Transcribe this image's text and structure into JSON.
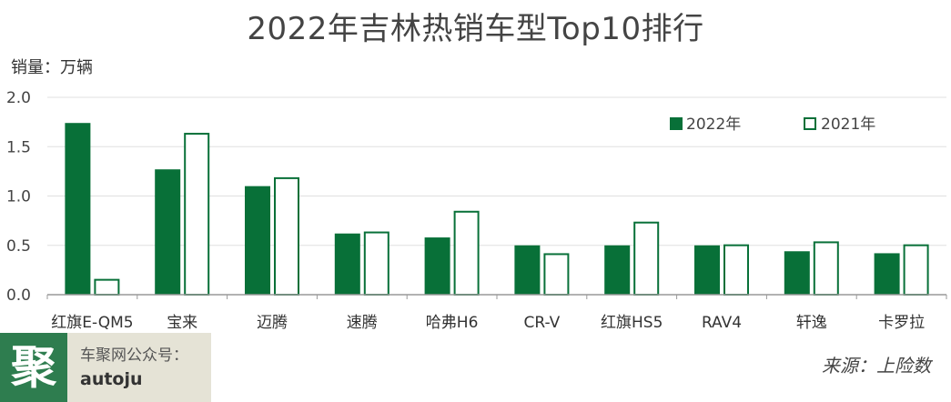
{
  "title": "2022年吉林热销车型Top10排行",
  "unit_label": "销量：万辆",
  "source": "来源：上险数",
  "watermark": {
    "mark": "聚",
    "line1": "车聚网公众号：",
    "line2": "autoju"
  },
  "colors": {
    "series_2022": "#087038",
    "series_2021_fill": "#ffffff",
    "series_2021_stroke": "#087038",
    "grid": "#e0e0e0",
    "axis": "#999999"
  },
  "chart_data": {
    "type": "bar",
    "categories": [
      "红旗E-QM5",
      "宝来",
      "迈腾",
      "速腾",
      "哈弗H6",
      "CR-V",
      "红旗HS5",
      "RAV4",
      "轩逸",
      "卡罗拉"
    ],
    "series": [
      {
        "name": "2022年",
        "values": [
          1.74,
          1.27,
          1.1,
          0.62,
          0.58,
          0.5,
          0.5,
          0.5,
          0.44,
          0.42
        ]
      },
      {
        "name": "2021年",
        "values": [
          0.16,
          1.64,
          1.19,
          0.64,
          0.85,
          0.42,
          0.74,
          0.51,
          0.54,
          0.51
        ]
      }
    ],
    "yticks": [
      "0.0",
      "0.5",
      "1.0",
      "1.5",
      "2.0"
    ],
    "ylim": [
      0,
      2.0
    ],
    "grid": true,
    "legend_position": "top-right"
  }
}
